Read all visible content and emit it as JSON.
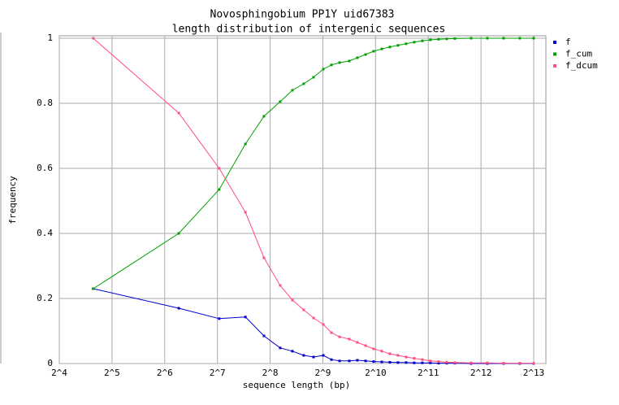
{
  "chart_data": {
    "type": "line",
    "title": "Novosphingobium PP1Y uid67383",
    "subtitle": "length distribution of intergenic sequences",
    "xlabel": "sequence length (bp)",
    "ylabel": "frequency",
    "x": [
      25,
      77,
      131,
      185,
      236,
      292,
      343,
      398,
      453,
      515,
      573,
      638,
      725,
      806,
      898,
      998,
      1111,
      1235,
      1375,
      1530,
      1702,
      1894,
      2106,
      2346,
      2610,
      2904,
      3595,
      4451,
      5511,
      6822,
      8192
    ],
    "series": [
      {
        "name": "f",
        "color": "#0000cc",
        "values": [
          0.23,
          0.17,
          0.138,
          0.143,
          0.085,
          0.048,
          0.038,
          0.025,
          0.02,
          0.025,
          0.012,
          0.008,
          0.008,
          0.01,
          0.008,
          0.006,
          0.005,
          0.004,
          0.003,
          0.003,
          0.002,
          0.002,
          0.002,
          0.001,
          0.001,
          0.001,
          0,
          0,
          0,
          0,
          0
        ]
      },
      {
        "name": "f_cum",
        "color": "#00a000",
        "values": [
          0.23,
          0.4,
          0.535,
          0.675,
          0.76,
          0.805,
          0.84,
          0.86,
          0.88,
          0.905,
          0.918,
          0.925,
          0.93,
          0.94,
          0.95,
          0.96,
          0.967,
          0.973,
          0.978,
          0.983,
          0.988,
          0.992,
          0.995,
          0.997,
          0.998,
          0.999,
          1,
          1,
          1,
          1,
          1
        ]
      },
      {
        "name": "f_dcum",
        "color": "#ff4f80",
        "values": [
          1.0,
          0.77,
          0.6,
          0.465,
          0.325,
          0.24,
          0.195,
          0.165,
          0.14,
          0.12,
          0.095,
          0.082,
          0.075,
          0.065,
          0.055,
          0.045,
          0.038,
          0.03,
          0.025,
          0.02,
          0.016,
          0.012,
          0.008,
          0.006,
          0.004,
          0.003,
          0.002,
          0.002,
          0.001,
          0.001,
          0.001
        ]
      }
    ],
    "xscale": "log2",
    "xlim": [
      16,
      8192
    ],
    "xticks": [
      {
        "value": 16,
        "label": "2^4"
      },
      {
        "value": 32,
        "label": "2^5"
      },
      {
        "value": 64,
        "label": "2^6"
      },
      {
        "value": 128,
        "label": "2^7"
      },
      {
        "value": 256,
        "label": "2^8"
      },
      {
        "value": 512,
        "label": "2^9"
      },
      {
        "value": 1024,
        "label": "2^10"
      },
      {
        "value": 2048,
        "label": "2^11"
      },
      {
        "value": 4096,
        "label": "2^12"
      },
      {
        "value": 8192,
        "label": "2^13"
      }
    ],
    "ylim": [
      0,
      1
    ],
    "yticks": [
      0,
      0.2,
      0.4,
      0.6,
      0.8,
      1
    ],
    "grid": true,
    "legend": "right"
  }
}
